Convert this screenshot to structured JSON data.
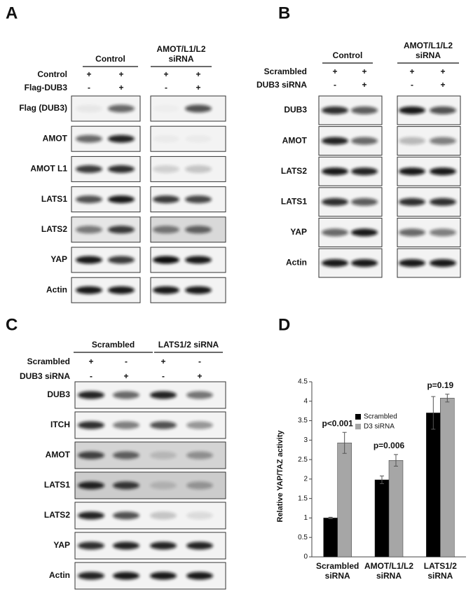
{
  "panels": {
    "A": {
      "label": "A",
      "groups": [
        "Control",
        "AMOT/L1/L2 siRNA"
      ],
      "conditions": [
        {
          "name": "Control",
          "signs": [
            "+",
            "+",
            "+",
            "+"
          ]
        },
        {
          "name": "Flag-DUB3",
          "signs": [
            "-",
            "+",
            "-",
            "+"
          ]
        }
      ],
      "blots": [
        "Flag (DUB3)",
        "AMOT",
        "AMOT L1",
        "LATS1",
        "LATS2",
        "YAP",
        "Actin"
      ]
    },
    "B": {
      "label": "B",
      "groups": [
        "Control",
        "AMOT/L1/L2 siRNA"
      ],
      "conditions": [
        {
          "name": "Scrambled",
          "signs": [
            "+",
            "+",
            "+",
            "+"
          ]
        },
        {
          "name": "DUB3 siRNA",
          "signs": [
            "-",
            "+",
            "-",
            "+"
          ]
        }
      ],
      "blots": [
        "DUB3",
        "AMOT",
        "LATS2",
        "LATS1",
        "YAP",
        "Actin"
      ]
    },
    "C": {
      "label": "C",
      "groups": [
        "Scrambled",
        "LATS1/2 siRNA"
      ],
      "conditions": [
        {
          "name": "Scrambled",
          "signs": [
            "+",
            "-",
            "+",
            "-"
          ]
        },
        {
          "name": "DUB3 siRNA",
          "signs": [
            "-",
            "+",
            "-",
            "+"
          ]
        }
      ],
      "blots": [
        "DUB3",
        "ITCH",
        "AMOT",
        "LATS1",
        "LATS2",
        "YAP",
        "Actin"
      ]
    },
    "D": {
      "label": "D"
    }
  },
  "chart_data": {
    "type": "bar",
    "y_label": "Relative YAP/TAZ activity",
    "categories": [
      "Scrambled siRNA",
      "AMOT/L1/L2 siRNA",
      "LATS1/2 siRNA"
    ],
    "series": [
      {
        "name": "Scrambled",
        "color": "#000000",
        "values": [
          1,
          1.98,
          3.7
        ],
        "errors": [
          0.02,
          0.1,
          0.42
        ]
      },
      {
        "name": "D3 siRNA",
        "color": "#a6a6a6",
        "values": [
          2.93,
          2.48,
          4.08
        ],
        "errors": [
          0.27,
          0.15,
          0.1
        ]
      }
    ],
    "annotations": [
      "p<0.001",
      "p=0.006",
      "p=0.19"
    ],
    "ylim": [
      0,
      4.5
    ],
    "yticks": [
      0,
      0.5,
      1,
      1.5,
      2,
      2.5,
      3,
      3.5,
      4,
      4.5
    ],
    "legend": "upper-left",
    "grid": false
  }
}
